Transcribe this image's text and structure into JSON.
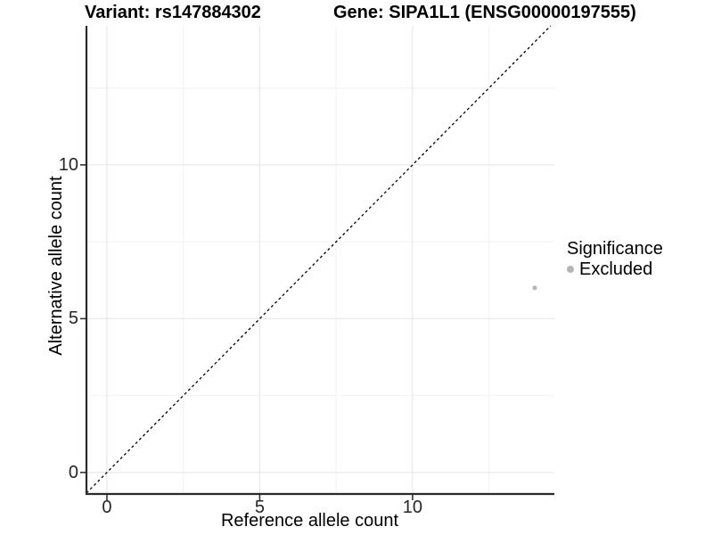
{
  "titles": {
    "variant": "Variant: rs147884302",
    "gene": "Gene: SIPA1L1 (ENSG00000197555)"
  },
  "chart_data": {
    "type": "scatter",
    "xlabel": "Reference allele count",
    "ylabel": "Alternative allele count",
    "xlim": [
      -0.67,
      14.64
    ],
    "ylim": [
      -0.7,
      14.52
    ],
    "x_ticks": [
      0,
      5,
      10
    ],
    "y_ticks": [
      0,
      5,
      10
    ],
    "x_minor_ticks": [
      2.5,
      7.5,
      12.5
    ],
    "y_minor_ticks": [
      2.5,
      7.5,
      12.5
    ],
    "grid": "major and minor, light gray",
    "identity_line": {
      "slope": 1,
      "intercept": 0,
      "style": "dashed",
      "color": "#000000"
    },
    "points": [
      {
        "x": 14,
        "y": 6,
        "group": "Excluded",
        "color": "#b5b5b5",
        "radius": 2.5
      }
    ],
    "legend": {
      "title": "Significance",
      "position": "right",
      "items": [
        {
          "label": "Excluded",
          "color": "#b5b5b5"
        }
      ]
    }
  },
  "colors": {
    "background": "#ffffff",
    "grid_major": "#e8e8e8",
    "grid_minor": "#f3f3f3",
    "axis_line": "#2a2a2a",
    "tick_mark": "#333333",
    "tick_text": "#262626",
    "title_text": "#000000",
    "identity_line": "#000000",
    "point": "#b5b5b5"
  }
}
